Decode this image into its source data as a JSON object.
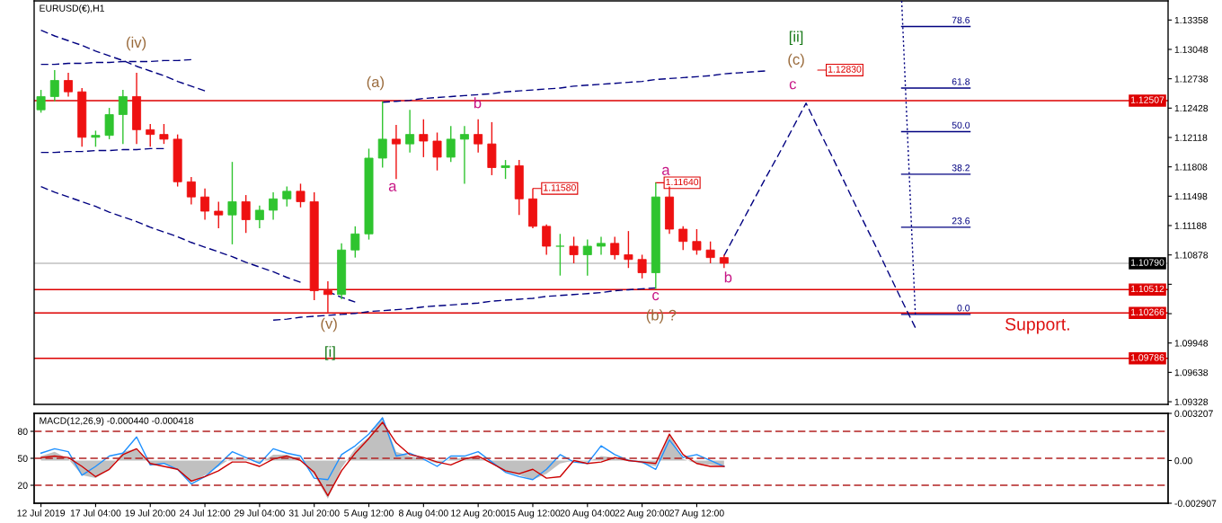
{
  "chart_data": [
    {
      "type": "candlestick",
      "title": "EURUSD(€),H1",
      "categories": [
        null,
        null,
        null,
        null,
        null,
        null,
        null,
        null,
        null,
        null,
        null,
        null,
        null,
        null,
        null,
        null,
        null,
        null,
        null,
        null,
        null,
        null,
        null,
        null,
        null,
        null,
        null,
        null,
        null,
        null,
        null,
        null,
        null,
        null,
        null,
        null,
        null,
        null,
        null,
        null,
        null,
        null,
        null,
        null,
        null,
        null,
        null,
        null,
        null,
        null,
        null,
        null,
        null,
        null,
        null,
        null,
        null,
        null,
        null,
        null,
        null,
        null,
        null,
        null,
        null,
        null,
        null,
        null,
        null,
        null,
        null,
        null,
        null,
        null,
        null,
        null,
        null,
        null,
        null,
        null,
        null,
        null,
        null
      ],
      "ohlc": [
        [
          1.1241,
          1.1262,
          1.1238,
          1.1255
        ],
        [
          1.1255,
          1.1283,
          1.125,
          1.1272
        ],
        [
          1.1272,
          1.128,
          1.1255,
          1.126
        ],
        [
          1.126,
          1.1264,
          1.1202,
          1.1212
        ],
        [
          1.1212,
          1.1219,
          1.1202,
          1.1214
        ],
        [
          1.1214,
          1.1243,
          1.121,
          1.1236
        ],
        [
          1.1236,
          1.1262,
          1.1205,
          1.1255
        ],
        [
          1.1255,
          1.128,
          1.1205,
          1.122
        ],
        [
          1.122,
          1.1226,
          1.1202,
          1.1215
        ],
        [
          1.1215,
          1.1226,
          1.1205,
          1.121
        ],
        [
          1.121,
          1.1215,
          1.116,
          1.1165
        ],
        [
          1.1165,
          1.117,
          1.1141,
          1.1149
        ],
        [
          1.1149,
          1.1158,
          1.1125,
          1.1134
        ],
        [
          1.1134,
          1.1144,
          1.1116,
          1.113
        ],
        [
          1.113,
          1.1186,
          1.1099,
          1.1144
        ],
        [
          1.1144,
          1.1151,
          1.1111,
          1.1125
        ],
        [
          1.1125,
          1.114,
          1.1116,
          1.1135
        ],
        [
          1.1135,
          1.1154,
          1.1125,
          1.1147
        ],
        [
          1.1147,
          1.116,
          1.1139,
          1.1155
        ],
        [
          1.1155,
          1.1163,
          1.1138,
          1.1144
        ],
        [
          1.1144,
          1.1154,
          1.104,
          1.105
        ],
        [
          1.105,
          1.106,
          1.1027,
          1.1046
        ],
        [
          1.1046,
          1.11,
          1.1041,
          1.1093
        ],
        [
          1.1093,
          1.1118,
          1.1085,
          1.111
        ],
        [
          1.111,
          1.12,
          1.1104,
          1.119
        ],
        [
          1.119,
          1.125,
          1.118,
          1.121
        ],
        [
          1.121,
          1.1225,
          1.1168,
          1.1205
        ],
        [
          1.1205,
          1.1241,
          1.1196,
          1.1215
        ],
        [
          1.1215,
          1.1231,
          1.1191,
          1.1208
        ],
        [
          1.1208,
          1.1217,
          1.1177,
          1.1191
        ],
        [
          1.1191,
          1.1224,
          1.1186,
          1.121
        ],
        [
          1.121,
          1.1224,
          1.1163,
          1.1215
        ],
        [
          1.1215,
          1.1231,
          1.1196,
          1.1205
        ],
        [
          1.1205,
          1.1228,
          1.1172,
          1.118
        ],
        [
          1.118,
          1.1188,
          1.1168,
          1.1182
        ],
        [
          1.1182,
          1.1188,
          1.113,
          1.1147
        ],
        [
          1.1147,
          1.1158,
          1.1116,
          1.1118
        ],
        [
          1.1118,
          1.112,
          1.1088,
          1.1097
        ],
        [
          1.1097,
          1.111,
          1.1066,
          1.1097
        ],
        [
          1.1097,
          1.1107,
          1.1079,
          1.1088
        ],
        [
          1.1088,
          1.1104,
          1.1066,
          1.1097
        ],
        [
          1.1097,
          1.1107,
          1.1088,
          1.11
        ],
        [
          1.11,
          1.1107,
          1.1083,
          1.1088
        ],
        [
          1.1088,
          1.1113,
          1.1074,
          1.1083
        ],
        [
          1.1083,
          1.1088,
          1.1063,
          1.1069
        ],
        [
          1.1069,
          1.1164,
          1.1052,
          1.1149
        ],
        [
          1.1149,
          1.116,
          1.111,
          1.1115
        ],
        [
          1.1115,
          1.1118,
          1.1093,
          1.1102
        ],
        [
          1.1102,
          1.1115,
          1.1088,
          1.1093
        ],
        [
          1.1093,
          1.1102,
          1.1079,
          1.1085
        ],
        [
          1.1085,
          1.1088,
          1.1074,
          1.1079
        ],
        null,
        null,
        null,
        null,
        null,
        null,
        null,
        null,
        null,
        null,
        null,
        null,
        null,
        null,
        null,
        null,
        null,
        null,
        null,
        null,
        null,
        null,
        null,
        null,
        null,
        null,
        null,
        null,
        null,
        null,
        null,
        null
      ],
      "colors": [
        "#2fc42f",
        "#2fc42f",
        "#ee1111",
        "#ee1111",
        "#2fc42f",
        "#2fc42f",
        "#2fc42f",
        "#ee1111",
        "#ee1111",
        "#ee1111",
        "#ee1111",
        "#ee1111",
        "#ee1111",
        "#ee1111",
        "#2fc42f",
        "#ee1111",
        "#2fc42f",
        "#2fc42f",
        "#2fc42f",
        "#ee1111",
        "#ee1111",
        "#ee1111",
        "#2fc42f",
        "#2fc42f",
        "#2fc42f",
        "#2fc42f",
        "#ee1111",
        "#2fc42f",
        "#ee1111",
        "#ee1111",
        "#2fc42f",
        "#2fc42f",
        "#ee1111",
        "#ee1111",
        "#2fc42f",
        "#ee1111",
        "#ee1111",
        "#ee1111",
        "#2fc42f",
        "#ee1111",
        "#2fc42f",
        "#2fc42f",
        "#ee1111",
        "#ee1111",
        "#ee1111",
        "#2fc42f",
        "#ee1111",
        "#ee1111",
        "#ee1111",
        "#ee1111",
        "#ee1111",
        null,
        null,
        null,
        null,
        null,
        null,
        null,
        null,
        null,
        null,
        null,
        null,
        null,
        null,
        null,
        null,
        null,
        null,
        null,
        null,
        null,
        null,
        null,
        null,
        null,
        null,
        null,
        null,
        null,
        null,
        null,
        null
      ],
      "series": [
        {
          "type": "line",
          "line_style": "dashed",
          "color": "#000080",
          "values": [
            1.1325,
            1.1319,
            1.1314,
            1.1309,
            1.1303,
            1.1298,
            1.1293,
            1.1287,
            1.1282,
            1.1277,
            1.1271,
            1.1266,
            1.1261,
            null,
            null,
            null,
            null,
            null,
            null,
            null,
            null,
            null,
            null,
            null,
            null,
            null,
            null,
            null,
            null,
            null,
            null,
            null,
            null,
            null,
            null,
            null,
            null,
            null,
            null,
            null,
            null,
            null,
            null,
            null,
            null,
            null,
            null,
            null,
            null,
            null,
            null,
            null,
            null,
            null,
            null,
            null,
            null,
            null,
            null,
            null,
            null,
            null,
            null,
            null,
            null,
            null,
            null,
            null,
            null,
            null,
            null,
            null,
            null,
            null,
            null,
            null,
            null,
            null,
            null,
            null,
            null,
            null,
            null
          ]
        },
        {
          "type": "line",
          "line_style": "dashed",
          "color": "#000080",
          "values": [
            1.1289,
            1.1289,
            1.129,
            1.129,
            1.1291,
            1.1291,
            1.1292,
            1.1292,
            1.1292,
            1.1293,
            1.1293,
            1.1294,
            null,
            null,
            null,
            null,
            null,
            null,
            null,
            null,
            null,
            null,
            null,
            null,
            null,
            null,
            null,
            null,
            null,
            null,
            null,
            null,
            null,
            null,
            null,
            null,
            null,
            null,
            null,
            null,
            null,
            null,
            null,
            null,
            null,
            null,
            null,
            null,
            null,
            null,
            null,
            null,
            null,
            null,
            null,
            null,
            null,
            null,
            null,
            null,
            null,
            null,
            null,
            null,
            null,
            null,
            null,
            null,
            null,
            null,
            null,
            null,
            null,
            null,
            null,
            null,
            null,
            null,
            null,
            null,
            null,
            null,
            null
          ]
        },
        {
          "type": "line",
          "line_style": "dashed",
          "color": "#000080",
          "values": [
            1.1196,
            1.1196,
            1.1197,
            1.1197,
            1.1198,
            1.1198,
            1.1199,
            1.1199,
            1.12,
            1.12,
            null,
            null,
            null,
            null,
            null,
            null,
            null,
            null,
            null,
            null,
            null,
            null,
            null,
            null,
            null,
            null,
            null,
            null,
            null,
            null,
            null,
            null,
            null,
            null,
            null,
            null,
            null,
            null,
            null,
            null,
            null,
            null,
            null,
            null,
            null,
            null,
            null,
            null,
            null,
            null,
            null,
            null,
            null,
            null,
            null,
            null,
            null,
            null,
            null,
            null,
            null,
            null,
            null,
            null,
            null,
            null,
            null,
            null,
            null,
            null,
            null,
            null,
            null,
            null,
            null,
            null,
            null,
            null,
            null,
            null,
            null,
            null,
            null
          ]
        },
        {
          "type": "line",
          "line_style": "dashed",
          "color": "#000080",
          "values": [
            1.116,
            1.1154,
            1.1149,
            1.1144,
            1.1139,
            1.1133,
            1.1128,
            1.1123,
            1.1117,
            1.1112,
            1.1107,
            1.1101,
            1.1096,
            1.1091,
            1.1086,
            1.108,
            1.1075,
            1.107,
            1.1064,
            1.1059,
            null,
            1.1049,
            1.1043,
            1.1038,
            null,
            null,
            null,
            null,
            null,
            null,
            null,
            null,
            null,
            null,
            null,
            null,
            null,
            null,
            null,
            null,
            null,
            null,
            null,
            null,
            null,
            null,
            null,
            null,
            null,
            null,
            null,
            null,
            null,
            null,
            null,
            null,
            null,
            null,
            null,
            null,
            null,
            null,
            null,
            null,
            null,
            null,
            null,
            null,
            null,
            null,
            null,
            null,
            null,
            null,
            null,
            null,
            null,
            null,
            null,
            null,
            null,
            null,
            null
          ]
        },
        {
          "type": "line",
          "line_style": "dashed",
          "color": "#000080",
          "values": [
            null,
            null,
            null,
            null,
            null,
            null,
            null,
            null,
            null,
            null,
            null,
            null,
            null,
            null,
            null,
            null,
            null,
            1.1019,
            1.102,
            1.1022,
            1.1023,
            1.1024,
            1.1025,
            1.1026,
            1.1028,
            1.1029,
            1.103,
            1.1031,
            1.1033,
            1.1034,
            1.1035,
            1.1036,
            1.1037,
            1.1039,
            1.104,
            1.1041,
            1.1042,
            1.1044,
            1.1045,
            1.1046,
            1.1047,
            1.1048,
            1.105,
            1.1051,
            1.1052,
            1.1053,
            null,
            null,
            null,
            null,
            null,
            null,
            null,
            null,
            null,
            null,
            null,
            null,
            null,
            null,
            null,
            null,
            null,
            null,
            null,
            null,
            null,
            null,
            null,
            null,
            null,
            null,
            null,
            null,
            null,
            null,
            null,
            null,
            null,
            null,
            null,
            null,
            null
          ]
        },
        {
          "type": "line",
          "line_style": "dashed",
          "color": "#000080",
          "values": [
            null,
            null,
            null,
            null,
            null,
            null,
            null,
            null,
            null,
            null,
            null,
            null,
            null,
            null,
            null,
            null,
            null,
            null,
            null,
            null,
            null,
            null,
            null,
            null,
            null,
            1.1249,
            1.125,
            1.1251,
            1.1253,
            1.1254,
            1.1255,
            1.1256,
            1.1257,
            1.1258,
            1.126,
            1.1261,
            1.1262,
            1.1263,
            1.1264,
            1.1266,
            1.1267,
            1.1268,
            1.1269,
            1.127,
            1.1271,
            1.1273,
            1.1274,
            1.1275,
            1.1276,
            1.1277,
            1.1279,
            1.128,
            1.1281,
            1.1282,
            null,
            null,
            null,
            null,
            null,
            null,
            null,
            null,
            null,
            null,
            null,
            null,
            null,
            null,
            null,
            null,
            null,
            null,
            null,
            null,
            null,
            null,
            null,
            null,
            null,
            null,
            null,
            null,
            null
          ]
        },
        {
          "type": "line",
          "line_style": "dashed",
          "color": "#000080",
          "values": [
            null,
            null,
            null,
            null,
            null,
            null,
            null,
            null,
            null,
            null,
            null,
            null,
            null,
            null,
            null,
            null,
            null,
            null,
            null,
            null,
            null,
            null,
            null,
            null,
            null,
            null,
            null,
            null,
            null,
            null,
            null,
            null,
            null,
            null,
            null,
            null,
            null,
            null,
            null,
            null,
            null,
            null,
            null,
            null,
            null,
            null,
            null,
            null,
            null,
            null,
            1.1087,
            1.1114,
            1.1141,
            1.1168,
            1.1194,
            1.1221,
            1.1248,
            1.1218,
            1.1189,
            1.1159,
            1.1129,
            1.11,
            1.107,
            1.104,
            1.1011,
            null,
            null,
            null,
            null,
            null,
            null,
            null,
            null,
            null,
            null,
            null,
            null,
            null,
            null,
            null,
            null,
            null,
            null
          ]
        },
        {
          "type": "line",
          "line_style": "dotted",
          "color": "#000080",
          "values": [
            null,
            null,
            null,
            null,
            null,
            null,
            null,
            null,
            null,
            null,
            null,
            null,
            null,
            null,
            null,
            null,
            null,
            null,
            null,
            null,
            null,
            null,
            null,
            null,
            null,
            null,
            null,
            null,
            null,
            null,
            null,
            null,
            null,
            null,
            null,
            null,
            null,
            null,
            null,
            null,
            null,
            null,
            null,
            null,
            null,
            null,
            null,
            null,
            null,
            null,
            null,
            null,
            null,
            null,
            null,
            null,
            null,
            null,
            null,
            null,
            null,
            null,
            null,
            1.1356,
            1.1025,
            null,
            null,
            null,
            null,
            null,
            null,
            null,
            null,
            null,
            null,
            null,
            null,
            null,
            null,
            null,
            null,
            null,
            null
          ]
        },
        {
          "type": "line",
          "name": "78.6",
          "color": "#000080",
          "values": [
            null,
            null,
            null,
            null,
            null,
            null,
            null,
            null,
            null,
            null,
            null,
            null,
            null,
            null,
            null,
            null,
            null,
            null,
            null,
            null,
            null,
            null,
            null,
            null,
            null,
            null,
            null,
            null,
            null,
            null,
            null,
            null,
            null,
            null,
            null,
            null,
            null,
            null,
            null,
            null,
            null,
            null,
            null,
            null,
            null,
            null,
            null,
            null,
            null,
            null,
            null,
            null,
            null,
            null,
            null,
            null,
            null,
            null,
            null,
            null,
            null,
            null,
            null,
            1.1329,
            1.1329,
            1.1329,
            1.1329,
            1.1329,
            1.1329,
            null,
            null,
            null,
            null,
            null,
            null,
            null,
            null,
            null,
            null,
            null,
            null,
            null,
            null
          ]
        },
        {
          "type": "line",
          "name": "61.8",
          "color": "#000080",
          "values": [
            null,
            null,
            null,
            null,
            null,
            null,
            null,
            null,
            null,
            null,
            null,
            null,
            null,
            null,
            null,
            null,
            null,
            null,
            null,
            null,
            null,
            null,
            null,
            null,
            null,
            null,
            null,
            null,
            null,
            null,
            null,
            null,
            null,
            null,
            null,
            null,
            null,
            null,
            null,
            null,
            null,
            null,
            null,
            null,
            null,
            null,
            null,
            null,
            null,
            null,
            null,
            null,
            null,
            null,
            null,
            null,
            null,
            null,
            null,
            null,
            null,
            null,
            null,
            1.1264,
            1.1264,
            1.1264,
            1.1264,
            1.1264,
            1.1264,
            null,
            null,
            null,
            null,
            null,
            null,
            null,
            null,
            null,
            null,
            null,
            null,
            null,
            null
          ]
        },
        {
          "type": "line",
          "name": "50.0",
          "color": "#000080",
          "values": [
            null,
            null,
            null,
            null,
            null,
            null,
            null,
            null,
            null,
            null,
            null,
            null,
            null,
            null,
            null,
            null,
            null,
            null,
            null,
            null,
            null,
            null,
            null,
            null,
            null,
            null,
            null,
            null,
            null,
            null,
            null,
            null,
            null,
            null,
            null,
            null,
            null,
            null,
            null,
            null,
            null,
            null,
            null,
            null,
            null,
            null,
            null,
            null,
            null,
            null,
            null,
            null,
            null,
            null,
            null,
            null,
            null,
            null,
            null,
            null,
            null,
            null,
            null,
            1.1218,
            1.1218,
            1.1218,
            1.1218,
            1.1218,
            1.1218,
            null,
            null,
            null,
            null,
            null,
            null,
            null,
            null,
            null,
            null,
            null,
            null,
            null,
            null
          ]
        },
        {
          "type": "line",
          "name": "38.2",
          "color": "#000080",
          "values": [
            null,
            null,
            null,
            null,
            null,
            null,
            null,
            null,
            null,
            null,
            null,
            null,
            null,
            null,
            null,
            null,
            null,
            null,
            null,
            null,
            null,
            null,
            null,
            null,
            null,
            null,
            null,
            null,
            null,
            null,
            null,
            null,
            null,
            null,
            null,
            null,
            null,
            null,
            null,
            null,
            null,
            null,
            null,
            null,
            null,
            null,
            null,
            null,
            null,
            null,
            null,
            null,
            null,
            null,
            null,
            null,
            null,
            null,
            null,
            null,
            null,
            null,
            null,
            1.1173,
            1.1173,
            1.1173,
            1.1173,
            1.1173,
            1.1173,
            null,
            null,
            null,
            null,
            null,
            null,
            null,
            null,
            null,
            null,
            null,
            null,
            null,
            null
          ]
        },
        {
          "type": "line",
          "name": "23.6",
          "color": "#000080",
          "values": [
            null,
            null,
            null,
            null,
            null,
            null,
            null,
            null,
            null,
            null,
            null,
            null,
            null,
            null,
            null,
            null,
            null,
            null,
            null,
            null,
            null,
            null,
            null,
            null,
            null,
            null,
            null,
            null,
            null,
            null,
            null,
            null,
            null,
            null,
            null,
            null,
            null,
            null,
            null,
            null,
            null,
            null,
            null,
            null,
            null,
            null,
            null,
            null,
            null,
            null,
            null,
            null,
            null,
            null,
            null,
            null,
            null,
            null,
            null,
            null,
            null,
            null,
            null,
            1.1117,
            1.1117,
            1.1117,
            1.1117,
            1.1117,
            1.1117,
            null,
            null,
            null,
            null,
            null,
            null,
            null,
            null,
            null,
            null,
            null,
            null,
            null,
            null
          ]
        },
        {
          "type": "line",
          "name": "0.0",
          "color": "#000080",
          "values": [
            null,
            null,
            null,
            null,
            null,
            null,
            null,
            null,
            null,
            null,
            null,
            null,
            null,
            null,
            null,
            null,
            null,
            null,
            null,
            null,
            null,
            null,
            null,
            null,
            null,
            null,
            null,
            null,
            null,
            null,
            null,
            null,
            null,
            null,
            null,
            null,
            null,
            null,
            null,
            null,
            null,
            null,
            null,
            null,
            null,
            null,
            null,
            null,
            null,
            null,
            null,
            null,
            null,
            null,
            null,
            null,
            null,
            null,
            null,
            null,
            null,
            null,
            null,
            1.1025,
            1.1025,
            1.1025,
            1.1025,
            1.1025,
            1.1025,
            null,
            null,
            null,
            null,
            null,
            null,
            null,
            null,
            null,
            null,
            null,
            null,
            null,
            null
          ]
        }
      ],
      "ylim": [
        1.093,
        1.1356
      ],
      "yticks": [
        1.13358,
        1.13048,
        1.12738,
        1.12428,
        1.12118,
        1.11808,
        1.11498,
        1.11188,
        1.10878,
        {
          "value": 1.10568,
          "label": null
        },
        {
          "value": 1.10258,
          "label": null
        },
        1.09948,
        1.09638,
        1.09328
      ],
      "tick_labels": "y",
      "ref_lines": [
        {
          "axis": "y",
          "value": 1.12507,
          "label": "1.12507",
          "color": "#dd0000"
        },
        {
          "axis": "y",
          "value": 1.1079,
          "label": "1.10790",
          "color": "#c0c0c0"
        },
        {
          "axis": "y",
          "value": 1.10512,
          "label": "1.10512",
          "color": "#dd0000"
        },
        {
          "axis": "y",
          "value": 1.10266,
          "label": "1.10266",
          "color": "#dd0000"
        },
        {
          "axis": "y",
          "value": 1.09786,
          "label": "1.09786",
          "color": "#dd0000"
        }
      ],
      "annotations": [
        "(iv)",
        "(a)",
        "a",
        "b",
        {
          "text": "1.11580",
          "y": 1.1158
        },
        "a",
        {
          "text": "1.11640",
          "y": 1.1164
        },
        "b",
        "c",
        "(b) ?",
        "(v)",
        "[i]",
        "[ii]",
        "(c)",
        "c",
        {
          "text": "1.12830",
          "y": 1.1283
        },
        "Support."
      ]
    },
    {
      "type": "line",
      "title": "MACD(12,26,9) -0.000440 -0.000418",
      "categories": [
        "12 Jul 2019",
        null,
        null,
        null,
        "17 Jul 04:00",
        null,
        null,
        null,
        "19 Jul 20:00",
        null,
        null,
        null,
        "24 Jul 12:00",
        null,
        null,
        null,
        "29 Jul 04:00",
        null,
        null,
        null,
        "31 Jul 20:00",
        null,
        null,
        null,
        "5 Aug 12:00",
        null,
        null,
        null,
        "8 Aug 04:00",
        null,
        null,
        null,
        "12 Aug 20:00",
        null,
        null,
        null,
        "15 Aug 12:00",
        null,
        null,
        null,
        "20 Aug 04:00",
        null,
        null,
        null,
        "22 Aug 20:00",
        null,
        null,
        null,
        "27 Aug 12:00",
        null,
        null,
        null,
        null,
        null,
        null,
        null,
        null,
        null,
        null,
        null,
        null,
        null,
        null,
        null,
        null,
        null,
        null,
        null,
        null,
        null,
        null,
        null,
        null,
        null,
        null,
        null,
        null,
        null,
        null,
        null,
        null,
        null,
        null
      ],
      "series": [
        {
          "type": "area",
          "color": "#c0c0c0",
          "values": [
            0.0003,
            0.0006,
            0.0001,
            -0.001,
            -0.0012,
            -0.0006,
            0.0006,
            0.0008,
            -0.0003,
            -0.0002,
            -0.0006,
            -0.0015,
            -0.001,
            -0.0004,
            0.0002,
            0.0001,
            -0.0002,
            0.0004,
            0.0004,
            0.0001,
            -0.001,
            -0.0026,
            -0.0005,
            0.0008,
            0.0016,
            0.003,
            0.0006,
            0.0003,
            0.0001,
            -0.0002,
            0.0001,
            0.0002,
            0.0002,
            -0.0002,
            -0.0008,
            -0.001,
            -0.0013,
            -0.0009,
            -0.0002,
            0.0,
            -0.0001,
            0.0003,
            0.0002,
            0.0001,
            -0.0002,
            -0.0004,
            0.0018,
            0.0001,
            -0.0002,
            -0.0003,
            -0.0004,
            null,
            null,
            null,
            null,
            null,
            null,
            null,
            null,
            null,
            null,
            null,
            null,
            null,
            null,
            null,
            null,
            null,
            null,
            null,
            null,
            null,
            null,
            null,
            null,
            null,
            null,
            null,
            null,
            null,
            null,
            null,
            null
          ]
        },
        {
          "type": "line",
          "color": "#1e90ff",
          "values": [
            0.0005,
            0.0008,
            0.0006,
            -0.001,
            -0.0004,
            0.0003,
            0.0005,
            0.0016,
            -0.0003,
            -0.0002,
            -0.0006,
            -0.0016,
            -0.0011,
            -0.0003,
            0.0006,
            0.0002,
            -0.0002,
            0.0008,
            0.0005,
            0.0003,
            -0.0012,
            -0.0013,
            0.0004,
            0.001,
            0.0018,
            0.0029,
            0.0003,
            0.0005,
            0.0001,
            -0.0004,
            0.0003,
            0.0003,
            0.0006,
            -0.0001,
            -0.0008,
            -0.0011,
            -0.0013,
            -0.0006,
            0.0004,
            -0.0001,
            -0.0002,
            0.001,
            0.0004,
            0.0,
            -0.0001,
            -0.0006,
            0.0014,
            0.0002,
            0.0004,
            0.0,
            -0.0004,
            null,
            null,
            null,
            null,
            null,
            null,
            null,
            null,
            null,
            null,
            null,
            null,
            null,
            null,
            null,
            null,
            null,
            null,
            null,
            null,
            null,
            null,
            null,
            null,
            null,
            null,
            null,
            null,
            null,
            null,
            null,
            null
          ]
        },
        {
          "type": "line",
          "color": "#cc0000",
          "values": [
            0.0002,
            0.0003,
            0.0002,
            -0.0004,
            -0.0011,
            -0.0006,
            0.0004,
            0.0008,
            -0.0002,
            -0.0004,
            -0.0006,
            -0.0014,
            -0.0011,
            -0.0007,
            -0.0001,
            -0.0001,
            -0.0004,
            0.0001,
            0.0003,
            0.0,
            -0.0008,
            -0.0024,
            -0.0007,
            0.0005,
            0.0015,
            0.0026,
            0.0012,
            0.0004,
            0.0002,
            -0.0001,
            -0.0003,
            0.0001,
            0.0003,
            -0.0002,
            -0.0007,
            -0.0009,
            -0.0006,
            -0.0012,
            -0.0011,
            0.0,
            -0.0002,
            -0.0001,
            0.0002,
            0.0,
            -0.0001,
            -0.0002,
            0.0018,
            0.0004,
            -0.0002,
            -0.0004,
            -0.0004,
            null,
            null,
            null,
            null,
            null,
            null,
            null,
            null,
            null,
            null,
            null,
            null,
            null,
            null,
            null,
            null,
            null,
            null,
            null,
            null,
            null,
            null,
            null,
            null,
            null,
            null,
            null,
            null,
            null,
            null,
            null,
            null
          ]
        }
      ],
      "ylim": [
        -0.002907,
        0.003207
      ],
      "yticks": [
        0.003207,
        {
          "value": 0,
          "label": "0.00"
        },
        -0.002907
      ],
      "y2lim": [
        0,
        100
      ],
      "y2ticks": [
        20,
        50,
        80
      ],
      "ref_lines": [
        {
          "axis": "y2",
          "value": 80,
          "color": "#b22222",
          "line_style": "dashed"
        },
        {
          "axis": "y2",
          "value": 50,
          "color": "#b22222",
          "line_style": "dashed"
        },
        {
          "axis": "y2",
          "value": 20,
          "color": "#b22222",
          "line_style": "dashed"
        }
      ]
    }
  ]
}
